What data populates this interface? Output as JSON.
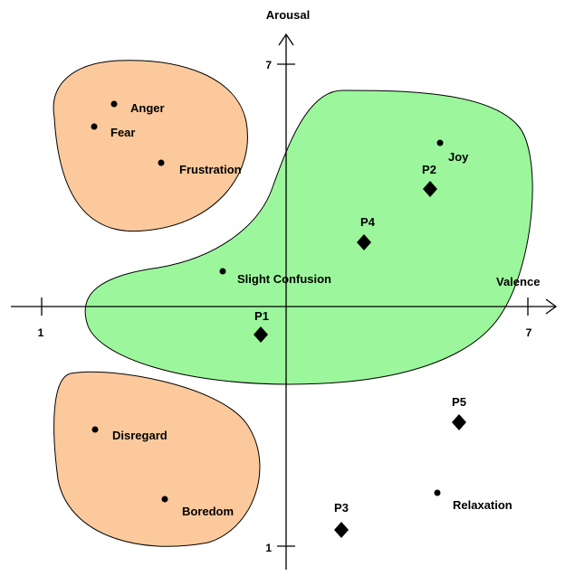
{
  "axes": {
    "x_label": "Valence",
    "y_label": "Arousal",
    "x_ticks": [
      "1",
      "7"
    ],
    "y_ticks": [
      "7",
      "1"
    ]
  },
  "colors": {
    "orange_region": "#fbc99c",
    "green_region": "#9cf79c",
    "line": "#000000"
  },
  "emotions": [
    {
      "id": "anger",
      "label": "Anger"
    },
    {
      "id": "fear",
      "label": "Fear"
    },
    {
      "id": "frustration",
      "label": "Frustration"
    },
    {
      "id": "joy",
      "label": "Joy"
    },
    {
      "id": "slight-confusion",
      "label": "Slight Confusion"
    },
    {
      "id": "disregard",
      "label": "Disregard"
    },
    {
      "id": "boredom",
      "label": "Boredom"
    },
    {
      "id": "relaxation",
      "label": "Relaxation"
    }
  ],
  "points": [
    {
      "id": "p1",
      "label": "P1"
    },
    {
      "id": "p2",
      "label": "P2"
    },
    {
      "id": "p3",
      "label": "P3"
    },
    {
      "id": "p4",
      "label": "P4"
    },
    {
      "id": "p5",
      "label": "P5"
    }
  ]
}
